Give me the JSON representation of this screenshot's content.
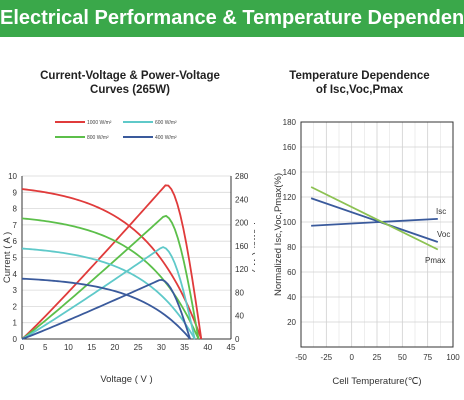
{
  "banner": {
    "title": "Electrical Performance & Temperature Dependence",
    "color": "#3aa84a"
  },
  "chart_data": [
    {
      "type": "line",
      "title": "Current-Voltage & Power-Voltage Curves (265W)",
      "title_lines": [
        "Current-Voltage & Power-Voltage",
        "Curves (265W)"
      ],
      "xlabel": "Voltage ( V )",
      "ylabel": "Current ( A )",
      "y2label": "Power ( W )",
      "xlim": [
        0,
        45
      ],
      "ylim": [
        0,
        10
      ],
      "y2lim": [
        0,
        280
      ],
      "x_ticks": [
        "0",
        "5",
        "10",
        "15",
        "20",
        "25",
        "30",
        "35",
        "40",
        "45"
      ],
      "y_ticks": [
        "0",
        "1",
        "2",
        "3",
        "4",
        "5",
        "6",
        "7",
        "8",
        "9",
        "10"
      ],
      "y2_ticks": [
        "0",
        "40",
        "80",
        "120",
        "160",
        "200",
        "240",
        "280"
      ],
      "grid": "horizontal",
      "legend_position": "top",
      "series": [
        {
          "name": "1000 W/m²",
          "color": "#e03b3b",
          "isc": 9.2,
          "voc": 38.6,
          "pmax_v": 31.0,
          "pmax_p": 265
        },
        {
          "name": "800 W/m²",
          "color": "#5cbf4a",
          "isc": 7.4,
          "voc": 38.0,
          "pmax_v": 30.7,
          "pmax_p": 212
        },
        {
          "name": "600 W/m²",
          "color": "#5fc9c9",
          "isc": 5.55,
          "voc": 37.2,
          "pmax_v": 30.2,
          "pmax_p": 158
        },
        {
          "name": "400 W/m²",
          "color": "#3a5a9c",
          "isc": 3.7,
          "voc": 36.2,
          "pmax_v": 29.8,
          "pmax_p": 102
        }
      ]
    },
    {
      "type": "line",
      "title": "Temperature Dependence of Isc,Voc,Pmax",
      "title_lines": [
        "Temperature Dependence",
        "of Isc,Voc,Pmax"
      ],
      "xlabel": "Cell Temperature(℃)",
      "ylabel": "Normalized Isc,Voc,Pmax(%)",
      "xlim": [
        -50,
        100
      ],
      "ylim": [
        0,
        180
      ],
      "x_ticks": [
        "-50",
        "-25",
        "0",
        "25",
        "50",
        "75",
        "100"
      ],
      "y_ticks": [
        "20",
        "40",
        "60",
        "80",
        "100",
        "120",
        "140",
        "160",
        "180"
      ],
      "grid": "both",
      "series": [
        {
          "name": "Isc",
          "color": "#3a5a9c",
          "x": [
            -40,
            85
          ],
          "y": [
            97,
            102.5
          ]
        },
        {
          "name": "Voc",
          "color": "#3a5a9c",
          "x": [
            -40,
            85
          ],
          "y": [
            119,
            84
          ]
        },
        {
          "name": "Pmax",
          "color": "#8cc152",
          "x": [
            -40,
            85
          ],
          "y": [
            128,
            78
          ]
        }
      ]
    }
  ]
}
